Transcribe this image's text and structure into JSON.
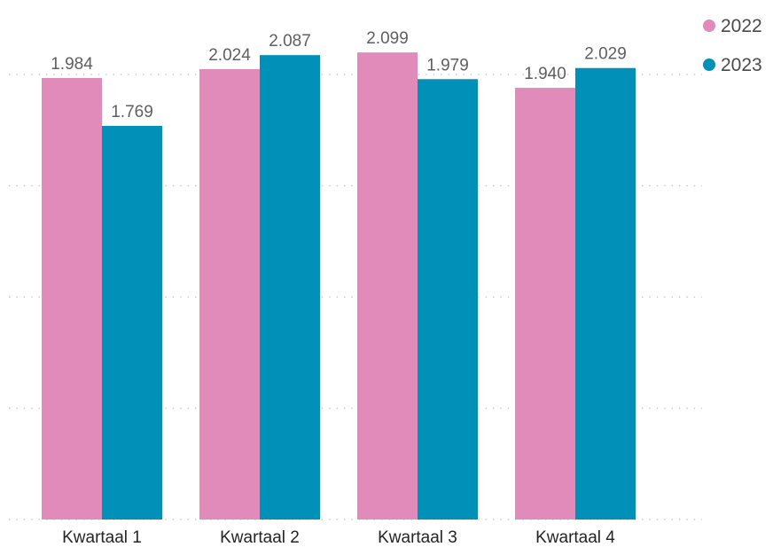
{
  "chart_data": {
    "type": "bar",
    "title": "",
    "xlabel": "",
    "ylabel": "",
    "categories": [
      "Kwartaal 1",
      "Kwartaal 2",
      "Kwartaal 3",
      "Kwartaal 4"
    ],
    "series": [
      {
        "name": "2022",
        "color": "#E08BBA",
        "values": [
          1984,
          2024,
          2099,
          1940
        ],
        "labels": [
          "1.984",
          "2.024",
          "2.099",
          "1.940"
        ]
      },
      {
        "name": "2023",
        "color": "#0090B8",
        "values": [
          1769,
          2087,
          1979,
          2029
        ],
        "labels": [
          "1.769",
          "2.087",
          "1.979",
          "2.029"
        ]
      }
    ],
    "ylim": [
      0,
      2000
    ],
    "gridlines": [
      0,
      500,
      1000,
      1500,
      2000
    ],
    "grid": true,
    "legend": "top-right"
  }
}
